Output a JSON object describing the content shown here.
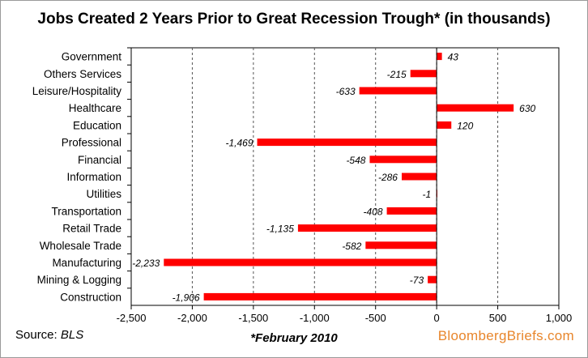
{
  "chart_data": {
    "type": "bar",
    "orientation": "horizontal",
    "title": "Jobs Created 2 Years Prior to Great Recession Trough* (in thousands)",
    "categories": [
      "Government",
      "Others Services",
      "Leisure/Hospitality",
      "Healthcare",
      "Education",
      "Professional",
      "Financial",
      "Information",
      "Utilities",
      "Transportation",
      "Retail Trade",
      "Wholesale Trade",
      "Manufacturing",
      "Mining & Logging",
      "Construction"
    ],
    "values": [
      43,
      -215,
      -633,
      630,
      120,
      -1469,
      -548,
      -286,
      -1,
      -408,
      -1135,
      -582,
      -2233,
      -73,
      -1906
    ],
    "data_labels": [
      "43",
      "-215",
      "-633",
      "630",
      "120",
      "-1,469",
      "-548",
      "-286",
      "-1",
      "-408",
      "-1,135",
      "-582",
      "-2,233",
      "-73",
      "-1,906"
    ],
    "xlim": [
      -2500,
      1000
    ],
    "xticks": [
      -2500,
      -2000,
      -1500,
      -1000,
      -500,
      0,
      500,
      1000
    ],
    "xtick_labels": [
      "-2,500",
      "-2,000",
      "-1,500",
      "-1,000",
      "-500",
      "0",
      "500",
      "1,000"
    ],
    "bar_color": "#ff0000",
    "grid": "vertical dashed",
    "legend": "none"
  },
  "footer": {
    "source_prefix": "Source: ",
    "source_value": "BLS",
    "note": "*February 2010",
    "brand": "BloombergBriefs.com"
  },
  "colors": {
    "bar": "#ff0000",
    "brand": "#e8862c"
  }
}
